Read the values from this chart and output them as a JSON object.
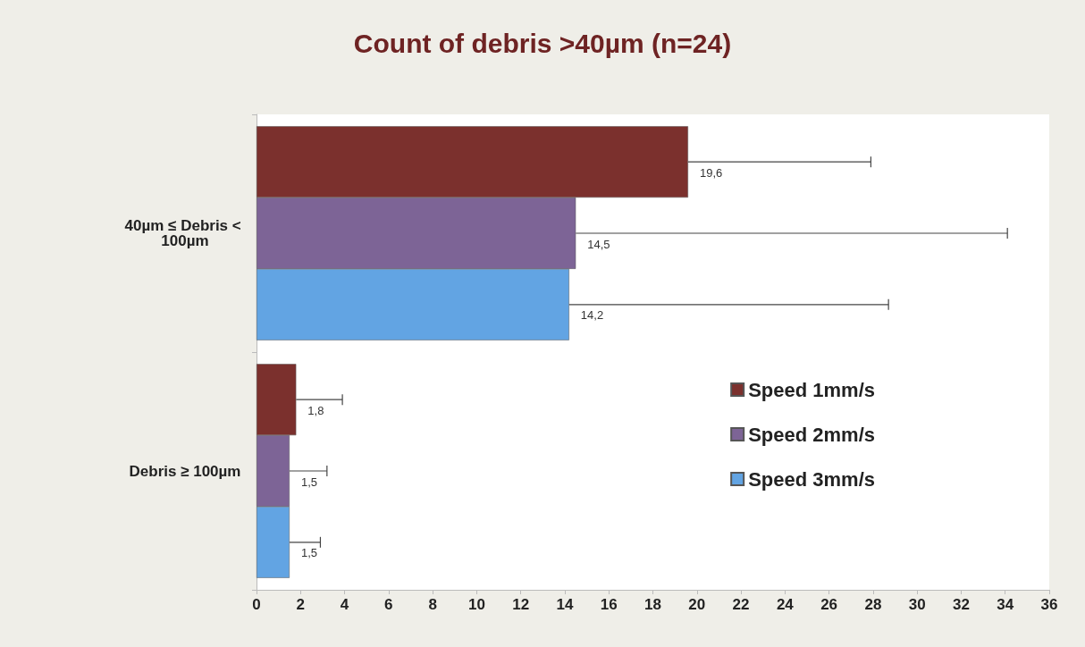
{
  "chart_data": {
    "type": "bar",
    "orientation": "horizontal",
    "title": "Count of debris >40µm (n=24)",
    "categories": [
      "40µm ≤ Debris < 100µm",
      "Debris ≥ 100µm"
    ],
    "series": [
      {
        "name": "Speed 1mm/s",
        "color": "#7b302d",
        "values": [
          19.6,
          1.8
        ],
        "value_labels": [
          "19,6",
          "1,8"
        ],
        "errors": [
          [
            19.6,
            27.9
          ],
          [
            1.8,
            3.9
          ]
        ]
      },
      {
        "name": "Speed 2mm/s",
        "color": "#7d6496",
        "values": [
          14.5,
          1.5
        ],
        "value_labels": [
          "14,5",
          "1,5"
        ],
        "errors": [
          [
            14.5,
            34.1
          ],
          [
            1.5,
            3.2
          ]
        ]
      },
      {
        "name": "Speed 3mm/s",
        "color": "#62a4e3",
        "values": [
          14.2,
          1.5
        ],
        "value_labels": [
          "14,2",
          "1,5"
        ],
        "errors": [
          [
            14.2,
            28.7
          ],
          [
            1.5,
            2.9
          ]
        ]
      }
    ],
    "xlim": [
      0,
      36
    ],
    "xticks": [
      0,
      2,
      4,
      6,
      8,
      10,
      12,
      14,
      16,
      18,
      20,
      22,
      24,
      26,
      28,
      30,
      32,
      34,
      36
    ],
    "grid": false,
    "legend": "right"
  }
}
